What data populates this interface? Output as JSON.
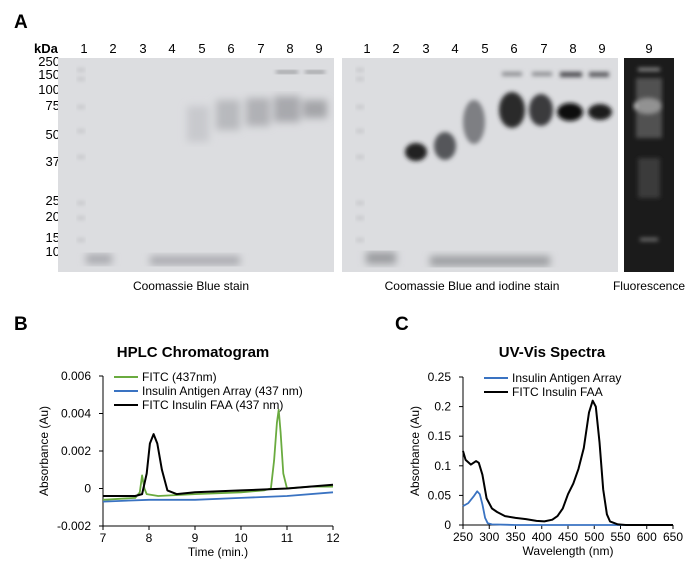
{
  "panel_a": {
    "label": "A",
    "unit": "kDa",
    "mw_markers": [
      "250",
      "150",
      "100",
      "75",
      "50",
      "37",
      "25",
      "20",
      "15",
      "10"
    ],
    "gel1_lanes": [
      "1",
      "2",
      "3",
      "4",
      "5",
      "6",
      "7",
      "8",
      "9"
    ],
    "gel2_lanes": [
      "1",
      "2",
      "3",
      "4",
      "5",
      "6",
      "7",
      "8",
      "9"
    ],
    "gel3_lanes": [
      "9"
    ],
    "caption_gel1": "Coomassie Blue stain",
    "caption_gel2": "Coomassie Blue and iodine stain",
    "caption_gel3": "Fluorescence"
  },
  "chart_data": [
    {
      "type": "line",
      "panel_label": "B",
      "title": "HPLC Chromatogram",
      "xlabel": "Time (min.)",
      "ylabel": "Absorbance (Au)",
      "xlim": [
        7,
        12
      ],
      "ylim": [
        -0.002,
        0.006
      ],
      "xticks": [
        "7",
        "8",
        "9",
        "10",
        "11",
        "12"
      ],
      "yticks": [
        "-0.002",
        "0",
        "0.002",
        "0.004",
        "0.006"
      ],
      "legend": "top-left",
      "series": [
        {
          "name": "FITC (437nm)",
          "color": "#6aab3f",
          "points": [
            [
              7,
              -0.0006
            ],
            [
              7.7,
              -0.0005
            ],
            [
              7.8,
              -0.0002
            ],
            [
              7.85,
              0.0007
            ],
            [
              7.9,
              0.0
            ],
            [
              7.95,
              -0.0003
            ],
            [
              8.2,
              -0.0004
            ],
            [
              9,
              -0.0003
            ],
            [
              10,
              -0.0002
            ],
            [
              10.5,
              -0.0001
            ],
            [
              10.65,
              0.0
            ],
            [
              10.72,
              0.0015
            ],
            [
              10.78,
              0.0035
            ],
            [
              10.82,
              0.0042
            ],
            [
              10.86,
              0.003
            ],
            [
              10.92,
              0.0008
            ],
            [
              11.0,
              0.0
            ],
            [
              11.5,
              0.0001
            ],
            [
              12,
              0.0001
            ]
          ]
        },
        {
          "name": "Insulin Antigen Array (437 nm)",
          "color": "#3a73c2",
          "points": [
            [
              7,
              -0.0007
            ],
            [
              8,
              -0.0006
            ],
            [
              9,
              -0.0006
            ],
            [
              10,
              -0.0005
            ],
            [
              11,
              -0.0004
            ],
            [
              12,
              -0.0002
            ]
          ]
        },
        {
          "name": "FITC Insulin FAA (437 nm)",
          "color": "#000000",
          "points": [
            [
              7,
              -0.0004
            ],
            [
              7.7,
              -0.0004
            ],
            [
              7.85,
              -0.0003
            ],
            [
              7.95,
              0.0008
            ],
            [
              8.02,
              0.0024
            ],
            [
              8.1,
              0.0029
            ],
            [
              8.18,
              0.0024
            ],
            [
              8.28,
              0.001
            ],
            [
              8.4,
              -0.0001
            ],
            [
              8.6,
              -0.0003
            ],
            [
              9,
              -0.0002
            ],
            [
              10,
              -0.0001
            ],
            [
              11,
              0.0
            ],
            [
              12,
              0.0002
            ]
          ]
        }
      ]
    },
    {
      "type": "line",
      "panel_label": "C",
      "title": "UV-Vis Spectra",
      "xlabel": "Wavelength (nm)",
      "ylabel": "Absorbance (Au)",
      "xlim": [
        250,
        650
      ],
      "ylim": [
        0,
        0.25
      ],
      "xticks": [
        "250",
        "300",
        "350",
        "400",
        "450",
        "500",
        "550",
        "600",
        "650"
      ],
      "yticks": [
        "0",
        "0.05",
        "0.1",
        "0.15",
        "0.2",
        "0.25"
      ],
      "legend": "top-left",
      "series": [
        {
          "name": "Insulin Antigen Array",
          "color": "#3a73c2",
          "points": [
            [
              250,
              0.032
            ],
            [
              260,
              0.037
            ],
            [
              270,
              0.048
            ],
            [
              277,
              0.057
            ],
            [
              282,
              0.052
            ],
            [
              287,
              0.035
            ],
            [
              292,
              0.012
            ],
            [
              297,
              0.003
            ],
            [
              305,
              0.001
            ],
            [
              350,
              0.0
            ],
            [
              650,
              0.0
            ]
          ]
        },
        {
          "name": "FITC Insulin FAA",
          "color": "#000000",
          "points": [
            [
              250,
              0.125
            ],
            [
              255,
              0.11
            ],
            [
              265,
              0.102
            ],
            [
              275,
              0.108
            ],
            [
              280,
              0.105
            ],
            [
              287,
              0.085
            ],
            [
              295,
              0.045
            ],
            [
              305,
              0.028
            ],
            [
              315,
              0.022
            ],
            [
              330,
              0.015
            ],
            [
              350,
              0.012
            ],
            [
              370,
              0.01
            ],
            [
              390,
              0.007
            ],
            [
              405,
              0.006
            ],
            [
              420,
              0.009
            ],
            [
              430,
              0.015
            ],
            [
              440,
              0.028
            ],
            [
              450,
              0.052
            ],
            [
              460,
              0.07
            ],
            [
              470,
              0.095
            ],
            [
              480,
              0.13
            ],
            [
              490,
              0.19
            ],
            [
              497,
              0.21
            ],
            [
              503,
              0.2
            ],
            [
              510,
              0.14
            ],
            [
              517,
              0.06
            ],
            [
              524,
              0.018
            ],
            [
              530,
              0.006
            ],
            [
              545,
              0.001
            ],
            [
              560,
              0.0
            ],
            [
              650,
              0.0
            ]
          ]
        }
      ]
    }
  ]
}
